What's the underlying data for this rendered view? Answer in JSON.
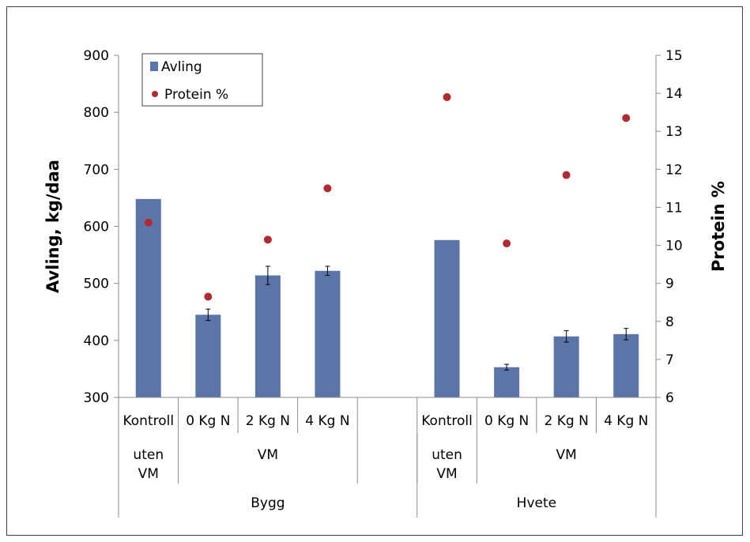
{
  "chart_data": {
    "type": "bar",
    "categories": [
      "Kontroll",
      "0 Kg N",
      "2 Kg N",
      "4 Kg N",
      "",
      "Kontroll",
      "0 Kg N",
      "2 Kg N",
      "4 Kg N"
    ],
    "groups_level2": [
      {
        "label": "uten VM",
        "span": [
          0,
          0
        ]
      },
      {
        "label": "VM",
        "span": [
          1,
          3
        ]
      },
      {
        "label": "uten VM",
        "span": [
          5,
          5
        ]
      },
      {
        "label": "VM",
        "span": [
          6,
          8
        ]
      }
    ],
    "groups_level3": [
      {
        "label": "Bygg",
        "span": [
          0,
          4
        ]
      },
      {
        "label": "Hvete",
        "span": [
          5,
          8
        ]
      }
    ],
    "series": [
      {
        "name": "Avling",
        "kind": "bar",
        "axis": "left",
        "color": "#5b75a8",
        "values": [
          648,
          445,
          514,
          522,
          null,
          576,
          353,
          407,
          411
        ],
        "errors": [
          null,
          10,
          16,
          8,
          null,
          null,
          5,
          10,
          10
        ]
      },
      {
        "name": "Protein %",
        "kind": "scatter",
        "axis": "right",
        "color": "#b02a30",
        "values": [
          10.6,
          8.65,
          10.15,
          11.5,
          null,
          13.9,
          10.05,
          11.85,
          13.35
        ]
      }
    ],
    "ylabel": "Avling, kg/daa",
    "y2label": "Protein %",
    "ylim": [
      300,
      900
    ],
    "yticks": [
      300,
      400,
      500,
      600,
      700,
      800,
      900
    ],
    "y2lim": [
      6,
      15
    ],
    "y2ticks": [
      6,
      7,
      8,
      9,
      10,
      11,
      12,
      13,
      14,
      15
    ],
    "legend_position": "top-left",
    "grid": false
  }
}
